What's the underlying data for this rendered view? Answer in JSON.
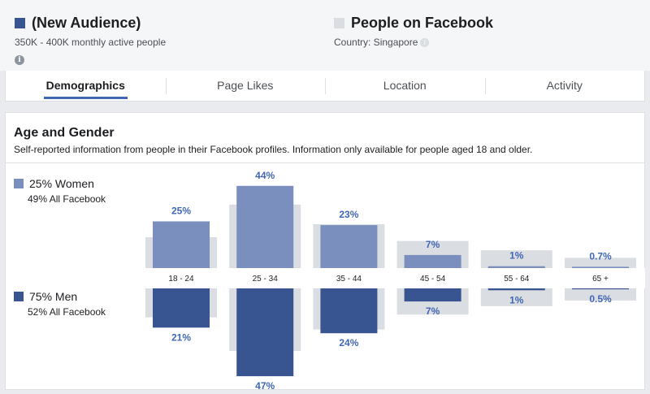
{
  "colors": {
    "women": "#7b8fbf",
    "men": "#385491",
    "facebook": "#dadde1",
    "value_women": "#4267b2",
    "value_men": "#4267b2"
  },
  "audience": {
    "title": "(New Audience)",
    "subtitle": "350K - 400K monthly active people",
    "info_icon": "info-icon"
  },
  "comparison": {
    "title": "People on Facebook",
    "subtitle": "Country: Singapore",
    "info_icon": "info-icon"
  },
  "tabs": [
    {
      "label": "Demographics",
      "active": true
    },
    {
      "label": "Page Likes",
      "active": false
    },
    {
      "label": "Location",
      "active": false
    },
    {
      "label": "Activity",
      "active": false
    }
  ],
  "section": {
    "title": "Age and Gender",
    "description": "Self-reported information from people in their Facebook profiles. Information only available for people aged 18 and older."
  },
  "legend": {
    "women": {
      "label": "25% Women",
      "sub": "49% All Facebook"
    },
    "men": {
      "label": "75% Men",
      "sub": "52% All Facebook"
    }
  },
  "chart_data": {
    "type": "bar",
    "categories": [
      "18 - 24",
      "25 - 34",
      "35 - 44",
      "45 - 54",
      "55 - 64",
      "65 +"
    ],
    "series": [
      {
        "name": "Women",
        "values": [
          25,
          44,
          23,
          7,
          1,
          0.7
        ],
        "labels": [
          "25%",
          "44%",
          "23%",
          "7%",
          "1%",
          "0.7%"
        ]
      },
      {
        "name": "Men",
        "values": [
          21,
          47,
          24,
          7,
          1,
          0.5
        ],
        "labels": [
          "21%",
          "47%",
          "24%",
          "7%",
          "1%",
          "0.5%"
        ]
      }
    ],
    "facebook_women": [
      16.5,
      34,
      23.5,
      14.5,
      9.5,
      5.5
    ],
    "facebook_men": [
      15.5,
      33.5,
      22,
      14,
      9.5,
      6.5
    ]
  }
}
